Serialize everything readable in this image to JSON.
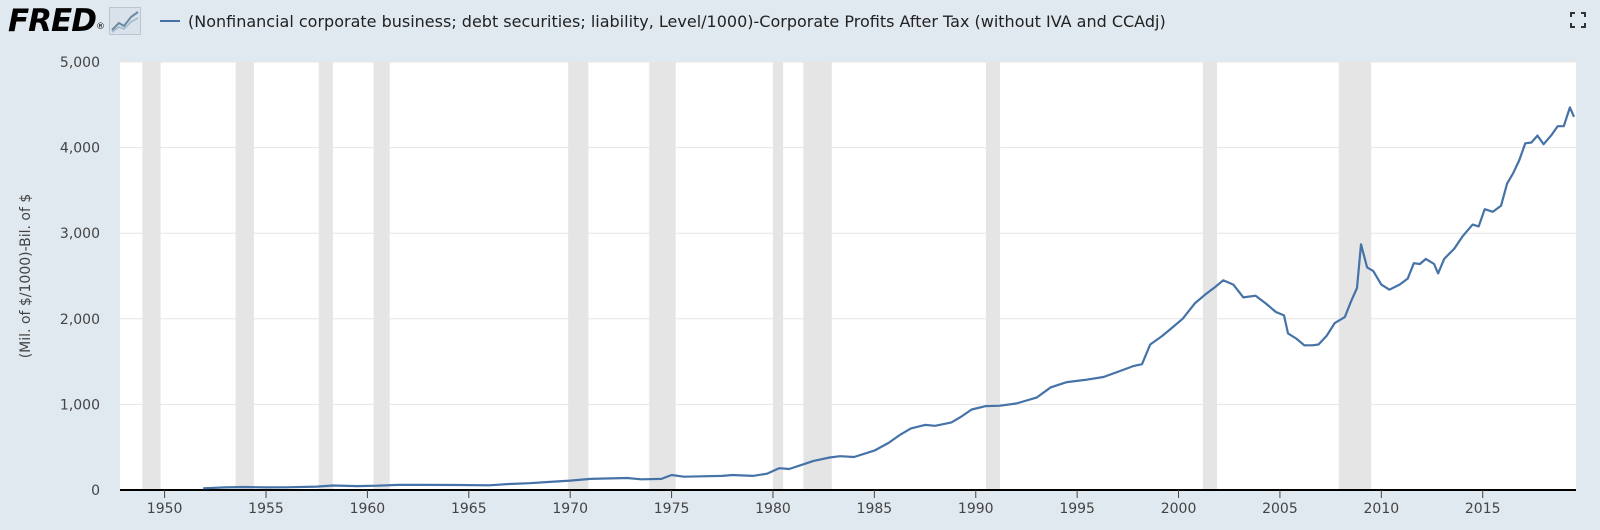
{
  "header": {
    "logo_text": "FRED",
    "logo_mark": "®",
    "legend_label": "(Nonfinancial corporate business; debt securities; liability, Level/1000)-Corporate Profits After Tax (without IVA and CCAdj)"
  },
  "icons": {
    "logo_graph": "line-chart-icon",
    "fullscreen": "fullscreen-icon"
  },
  "colors": {
    "series": "#4572a7",
    "recession": "#e5e5e5",
    "background": "#e1e9f0",
    "plot": "#ffffff"
  },
  "chart_data": {
    "type": "line",
    "title": "",
    "xlabel": "",
    "ylabel": "(Mil. of $/1000)-Bil. of $",
    "xlim": [
      1947.8,
      2018.5
    ],
    "ylim": [
      0,
      5000
    ],
    "yticks": [
      0,
      1000,
      2000,
      3000,
      4000,
      5000
    ],
    "ytick_labels": [
      "0",
      "1,000",
      "2,000",
      "3,000",
      "4,000",
      "5,000"
    ],
    "xticks": [
      1950,
      1955,
      1960,
      1965,
      1970,
      1975,
      1980,
      1985,
      1990,
      1995,
      2000,
      2005,
      2010,
      2015
    ],
    "xtick_labels": [
      "1950",
      "1955",
      "1960",
      "1965",
      "1970",
      "1975",
      "1980",
      "1985",
      "1990",
      "1995",
      "2000",
      "2005",
      "2010",
      "2015"
    ],
    "grid": true,
    "recessions": [
      [
        1948.9,
        1949.8
      ],
      [
        1953.5,
        1954.4
      ],
      [
        1957.6,
        1958.3
      ],
      [
        1960.3,
        1961.1
      ],
      [
        1969.9,
        1970.9
      ],
      [
        1973.9,
        1975.2
      ],
      [
        1980.0,
        1980.5
      ],
      [
        1981.5,
        1982.9
      ],
      [
        1990.5,
        1991.2
      ],
      [
        2001.2,
        2001.9
      ],
      [
        2007.9,
        2009.5
      ]
    ],
    "series": [
      {
        "values": [
          [
            1951.9,
            20
          ],
          [
            1953.0,
            30
          ],
          [
            1954.0,
            35
          ],
          [
            1955.0,
            30
          ],
          [
            1956.0,
            32
          ],
          [
            1957.5,
            40
          ],
          [
            1958.3,
            52
          ],
          [
            1959.5,
            45
          ],
          [
            1960.5,
            50
          ],
          [
            1961.5,
            60
          ],
          [
            1963.0,
            60
          ],
          [
            1964.5,
            58
          ],
          [
            1966.0,
            55
          ],
          [
            1967.0,
            70
          ],
          [
            1968.0,
            80
          ],
          [
            1969.0,
            95
          ],
          [
            1970.0,
            110
          ],
          [
            1971.0,
            130
          ],
          [
            1972.0,
            135
          ],
          [
            1972.8,
            140
          ],
          [
            1973.5,
            125
          ],
          [
            1974.5,
            130
          ],
          [
            1975.0,
            175
          ],
          [
            1975.6,
            155
          ],
          [
            1976.5,
            160
          ],
          [
            1977.5,
            165
          ],
          [
            1978.0,
            175
          ],
          [
            1979.0,
            165
          ],
          [
            1979.7,
            190
          ],
          [
            1980.3,
            255
          ],
          [
            1980.8,
            245
          ],
          [
            1981.5,
            300
          ],
          [
            1982.0,
            340
          ],
          [
            1982.8,
            380
          ],
          [
            1983.3,
            395
          ],
          [
            1984.0,
            385
          ],
          [
            1985.0,
            460
          ],
          [
            1985.7,
            550
          ],
          [
            1986.3,
            650
          ],
          [
            1986.8,
            720
          ],
          [
            1987.5,
            760
          ],
          [
            1988.0,
            750
          ],
          [
            1988.8,
            790
          ],
          [
            1989.3,
            860
          ],
          [
            1989.8,
            940
          ],
          [
            1990.5,
            980
          ],
          [
            1991.2,
            985
          ],
          [
            1992.0,
            1010
          ],
          [
            1993.0,
            1080
          ],
          [
            1993.7,
            1200
          ],
          [
            1994.5,
            1260
          ],
          [
            1995.5,
            1290
          ],
          [
            1996.3,
            1320
          ],
          [
            1997.0,
            1380
          ],
          [
            1997.8,
            1450
          ],
          [
            1998.2,
            1470
          ],
          [
            1998.6,
            1700
          ],
          [
            1999.2,
            1800
          ],
          [
            1999.7,
            1900
          ],
          [
            2000.2,
            2000
          ],
          [
            2000.8,
            2180
          ],
          [
            2001.3,
            2280
          ],
          [
            2001.8,
            2370
          ],
          [
            2002.2,
            2450
          ],
          [
            2002.7,
            2400
          ],
          [
            2003.2,
            2250
          ],
          [
            2003.8,
            2270
          ],
          [
            2004.3,
            2180
          ],
          [
            2004.8,
            2080
          ],
          [
            2005.2,
            2040
          ],
          [
            2005.4,
            1830
          ],
          [
            2005.8,
            1770
          ],
          [
            2006.2,
            1690
          ],
          [
            2006.6,
            1690
          ],
          [
            2006.9,
            1700
          ],
          [
            2007.3,
            1800
          ],
          [
            2007.7,
            1950
          ],
          [
            2008.2,
            2020
          ],
          [
            2008.5,
            2200
          ],
          [
            2008.8,
            2360
          ],
          [
            2009.0,
            2870
          ],
          [
            2009.3,
            2600
          ],
          [
            2009.6,
            2560
          ],
          [
            2010.0,
            2400
          ],
          [
            2010.4,
            2340
          ],
          [
            2010.9,
            2400
          ],
          [
            2011.3,
            2470
          ],
          [
            2011.6,
            2650
          ],
          [
            2011.9,
            2640
          ],
          [
            2012.2,
            2700
          ],
          [
            2012.6,
            2640
          ],
          [
            2012.8,
            2530
          ],
          [
            2013.1,
            2700
          ],
          [
            2013.6,
            2820
          ],
          [
            2014.0,
            2960
          ],
          [
            2014.5,
            3100
          ],
          [
            2014.8,
            3080
          ],
          [
            2015.1,
            3280
          ],
          [
            2015.5,
            3250
          ],
          [
            2015.9,
            3320
          ],
          [
            2016.2,
            3580
          ],
          [
            2016.5,
            3700
          ],
          [
            2016.8,
            3850
          ],
          [
            2017.1,
            4050
          ],
          [
            2017.4,
            4060
          ],
          [
            2017.7,
            4140
          ],
          [
            2018.0,
            4040
          ],
          [
            2018.4,
            4150
          ],
          [
            2018.7,
            4250
          ],
          [
            2019.0,
            4250
          ],
          [
            2019.3,
            4470
          ],
          [
            2019.5,
            4360
          ]
        ]
      }
    ]
  }
}
